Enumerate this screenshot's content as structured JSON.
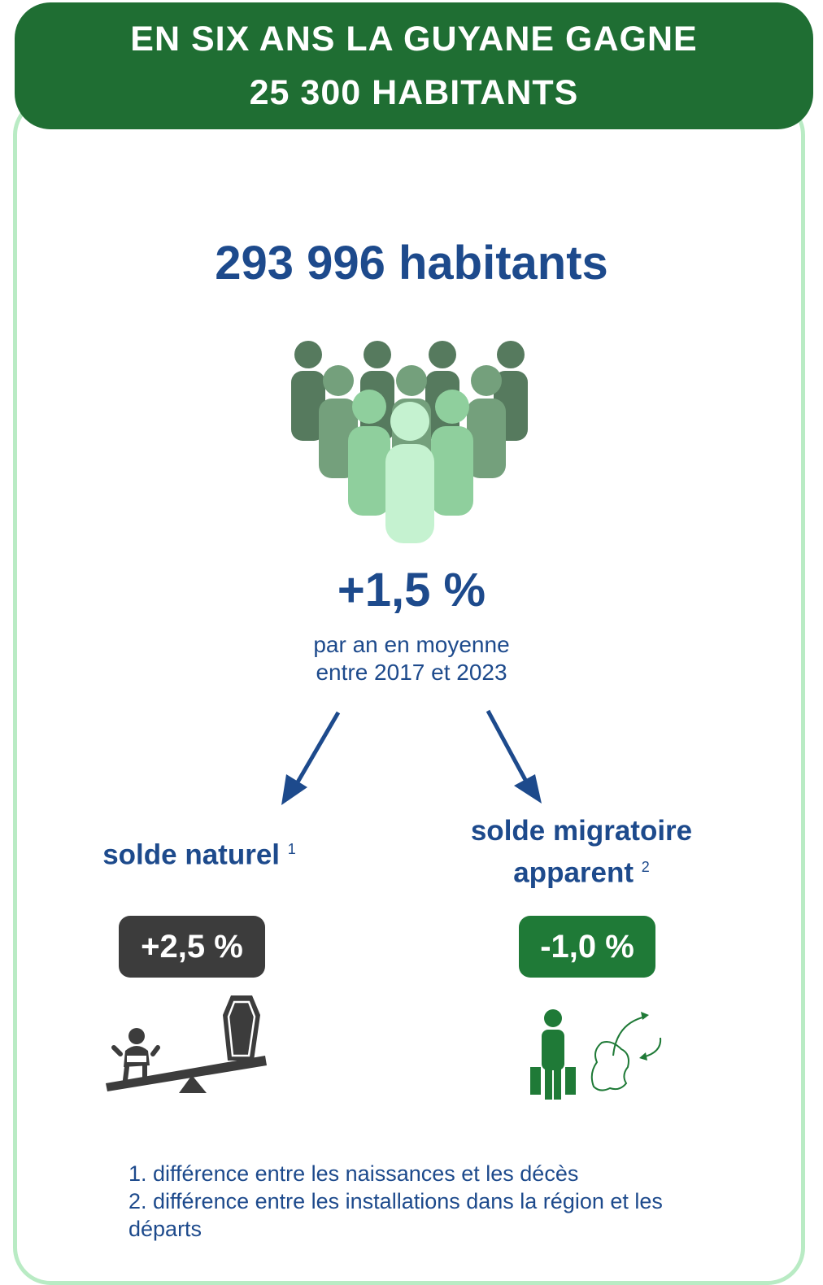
{
  "header": {
    "line1": "EN SIX ANS LA GUYANE GAGNE",
    "line2": "25 300 HABITANTS"
  },
  "population": {
    "label": "293 996 habitants",
    "icon": "crowd-icon"
  },
  "growth": {
    "value": "+1,5 %",
    "sub_line1": "par an en moyenne",
    "sub_line2": "entre 2017 et 2023"
  },
  "natural": {
    "title": "solde naturel",
    "note_ref": "1",
    "value": "+2,5 %",
    "icon": "birth-death-seesaw-icon"
  },
  "migration": {
    "title_line1": "solde migratoire",
    "title_line2": "apparent",
    "note_ref": "2",
    "value": "-1,0 %",
    "icon": "traveler-map-icon"
  },
  "notes": {
    "n1": "1. différence entre les naissances et les décès",
    "n2": "2. différence entre les installations dans la région et les départs"
  },
  "colors": {
    "dark_green": "#1f6e33",
    "navy": "#1d4a8c",
    "frame_green": "#b9ebc4",
    "dark_grey": "#3c3c3c"
  }
}
